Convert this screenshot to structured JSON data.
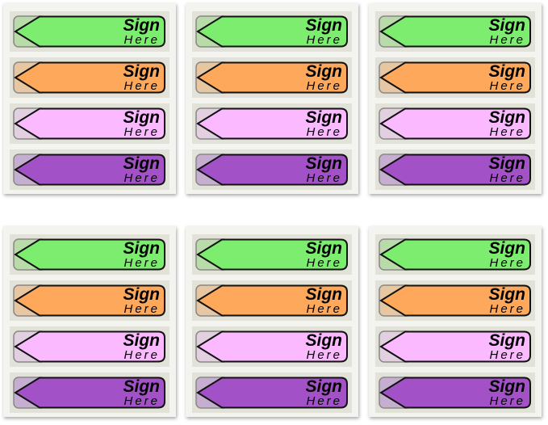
{
  "flag_text": {
    "line1": "Sign",
    "line2": "Here"
  },
  "flag_colors": [
    {
      "name": "green",
      "fill": "#7ced6f",
      "base": "#b9dba9"
    },
    {
      "name": "orange",
      "fill": "#fda85a",
      "base": "#e6c7a2"
    },
    {
      "name": "pink",
      "fill": "#fbbaff",
      "base": "#e2cfe0"
    },
    {
      "name": "purple",
      "fill": "#a251c6",
      "base": "#c6aed0"
    }
  ],
  "card_count": 6
}
